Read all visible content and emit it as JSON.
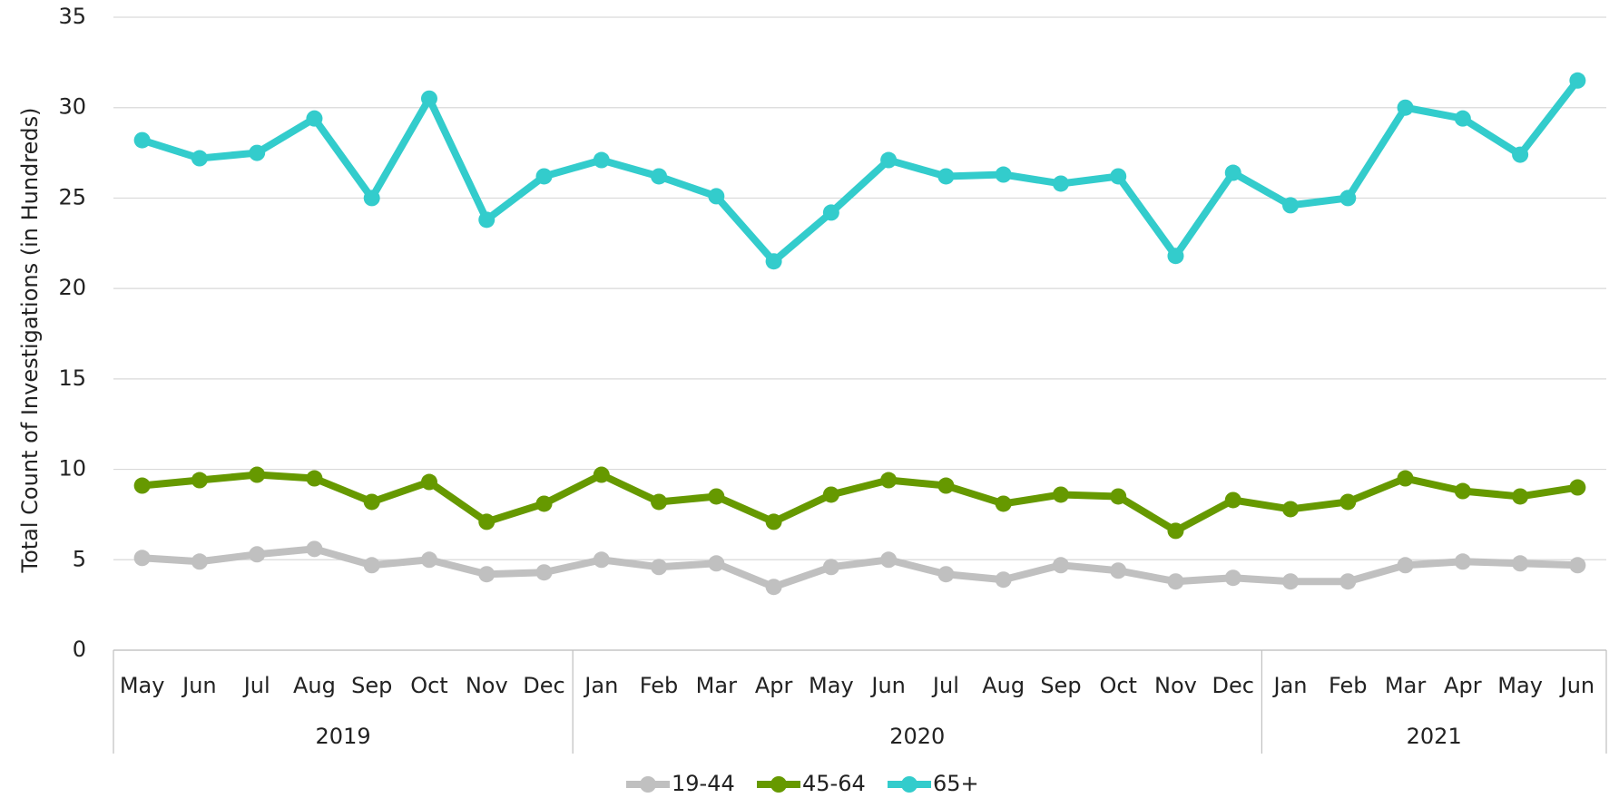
{
  "chart_data": {
    "type": "line",
    "y_label": "Total Count of  Investigations (in Hundreds)",
    "categories": [
      "May",
      "Jun",
      "Jul",
      "Aug",
      "Sep",
      "Oct",
      "Nov",
      "Dec",
      "Jan",
      "Feb",
      "Mar",
      "Apr",
      "May",
      "Jun",
      "Jul",
      "Aug",
      "Sep",
      "Oct",
      "Nov",
      "Dec",
      "Jan",
      "Feb",
      "Mar",
      "Apr",
      "May",
      "Jun"
    ],
    "year_groups": [
      {
        "label": "2019",
        "count": 8
      },
      {
        "label": "2020",
        "count": 12
      },
      {
        "label": "2021",
        "count": 6
      }
    ],
    "series": [
      {
        "name": "19-44",
        "color": "#c0c0c0",
        "values": [
          5.1,
          4.9,
          5.3,
          5.6,
          4.7,
          5.0,
          4.2,
          4.3,
          5.0,
          4.6,
          4.8,
          3.5,
          4.6,
          5.0,
          4.2,
          3.9,
          4.7,
          4.4,
          3.8,
          4.0,
          3.8,
          3.8,
          4.7,
          4.9,
          4.8,
          4.7
        ]
      },
      {
        "name": "45-64",
        "color": "#669900",
        "values": [
          9.1,
          9.4,
          9.7,
          9.5,
          8.2,
          9.3,
          7.1,
          8.1,
          9.7,
          8.2,
          8.5,
          7.1,
          8.6,
          9.4,
          9.1,
          8.1,
          8.6,
          8.5,
          6.6,
          8.3,
          7.8,
          8.2,
          9.5,
          8.8,
          8.5,
          9.0
        ]
      },
      {
        "name": "65+",
        "color": "#33cccc",
        "values": [
          28.2,
          27.2,
          27.5,
          29.4,
          25.0,
          30.5,
          23.8,
          26.2,
          27.1,
          26.2,
          25.1,
          21.5,
          24.2,
          27.1,
          26.2,
          26.3,
          25.8,
          26.2,
          21.8,
          26.4,
          24.6,
          25.0,
          30.0,
          29.4,
          27.4,
          31.5
        ]
      }
    ],
    "ylim": [
      0,
      35
    ],
    "yticks": [
      0,
      5,
      10,
      15,
      20,
      25,
      30,
      35
    ],
    "grid": true,
    "legend": "bottom"
  }
}
